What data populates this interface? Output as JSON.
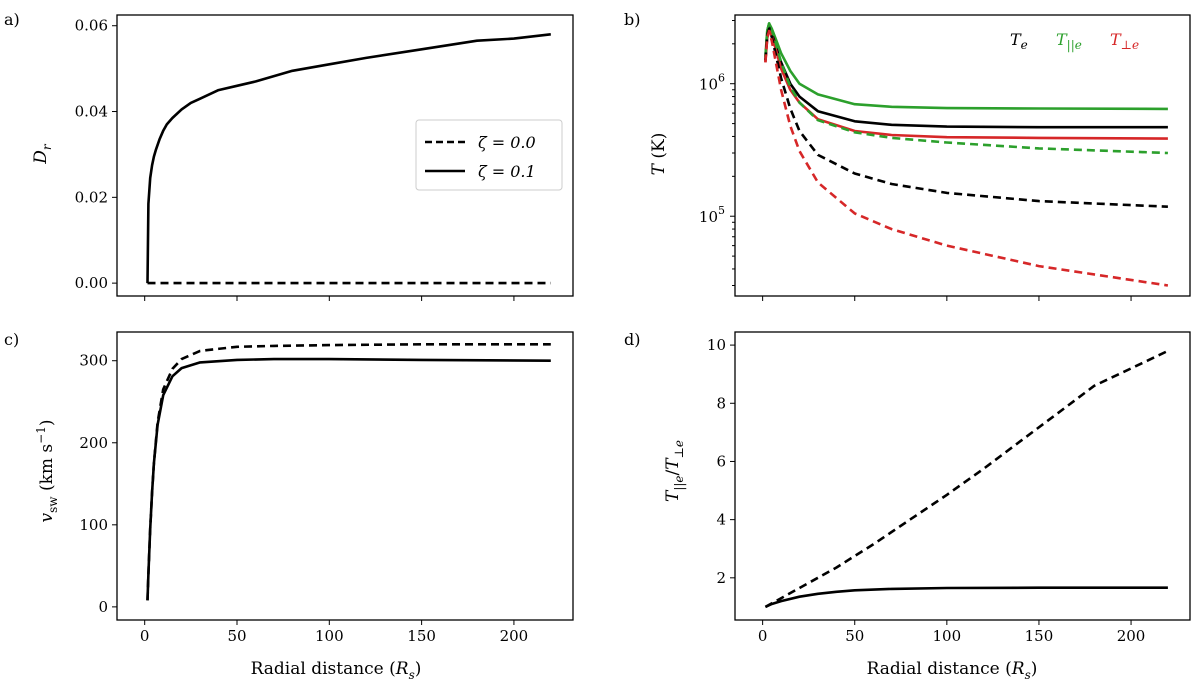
{
  "chart_data": [
    {
      "type": "line",
      "panel_label": "a)",
      "ylabel": "D_r",
      "xlabel": "",
      "xlim": [
        -15,
        232
      ],
      "ylim": [
        -0.003,
        0.0625
      ],
      "yscale": "linear",
      "xticks": [
        0,
        50,
        100,
        150,
        200
      ],
      "xticklabels": [],
      "yticks": [
        0.0,
        0.02,
        0.04,
        0.06
      ],
      "yticklabels": [
        "0.00",
        "0.02",
        "0.04",
        "0.06"
      ],
      "legend": {
        "position": "right",
        "entries": [
          {
            "label": "ζ = 0.0",
            "color": "#000000",
            "dash": "dashed"
          },
          {
            "label": "ζ = 0.1",
            "color": "#000000",
            "dash": "solid"
          }
        ]
      },
      "series": [
        {
          "name": "ζ = 0.0",
          "color": "#000000",
          "dash": "dashed",
          "x": [
            1.5,
            220
          ],
          "y": [
            0,
            0
          ]
        },
        {
          "name": "ζ = 0.1",
          "color": "#000000",
          "dash": "solid",
          "x": [
            1.5,
            2,
            3,
            4,
            5,
            6,
            8,
            10,
            12,
            15,
            20,
            25,
            30,
            40,
            50,
            60,
            80,
            100,
            120,
            150,
            180,
            200,
            220
          ],
          "y": [
            0,
            0.0185,
            0.0245,
            0.0275,
            0.0295,
            0.031,
            0.0335,
            0.0355,
            0.037,
            0.0385,
            0.0405,
            0.042,
            0.043,
            0.045,
            0.046,
            0.047,
            0.0495,
            0.051,
            0.0525,
            0.0545,
            0.0565,
            0.057,
            0.058
          ]
        }
      ]
    },
    {
      "type": "line",
      "panel_label": "b)",
      "ylabel": "T (K)",
      "xlabel": "",
      "xlim": [
        -15,
        232
      ],
      "ylim": [
        25000,
        3300000
      ],
      "yscale": "log",
      "xticks": [
        0,
        50,
        100,
        150,
        200
      ],
      "xticklabels": [],
      "yticks": [
        100000,
        1000000
      ],
      "yticklabels_base": [
        "10",
        "10"
      ],
      "yticklabels_exp": [
        "5",
        "6"
      ],
      "legend": {
        "position": "top-right",
        "entries": [
          {
            "label": "T",
            "sub": "e",
            "color": "#000000"
          },
          {
            "label": "T",
            "sub": "||e",
            "color": "#2ca02c"
          },
          {
            "label": "T",
            "sub": "⊥e",
            "color": "#d62728"
          }
        ]
      },
      "series": [
        {
          "name": "T_||e ζ=0.1",
          "color": "#2ca02c",
          "dash": "solid",
          "x": [
            1.5,
            2.5,
            3.5,
            5,
            7,
            10,
            15,
            20,
            30,
            50,
            70,
            100,
            150,
            220
          ],
          "y": [
            1600000,
            2500000,
            2850000,
            2600000,
            2200000,
            1700000,
            1250000,
            1000000,
            830000,
            700000,
            670000,
            655000,
            650000,
            645000
          ]
        },
        {
          "name": "T_e ζ=0.1",
          "color": "#000000",
          "dash": "solid",
          "x": [
            1.5,
            2.5,
            3.5,
            5,
            7,
            10,
            15,
            20,
            30,
            50,
            70,
            100,
            150,
            220
          ],
          "y": [
            1500000,
            2300000,
            2650000,
            2400000,
            1950000,
            1450000,
            1000000,
            800000,
            620000,
            520000,
            490000,
            475000,
            470000,
            470000
          ]
        },
        {
          "name": "T_⊥e ζ=0.1",
          "color": "#d62728",
          "dash": "solid",
          "x": [
            1.5,
            2.5,
            3.5,
            5,
            7,
            10,
            15,
            20,
            30,
            50,
            70,
            100,
            150,
            220
          ],
          "y": [
            1450000,
            2200000,
            2550000,
            2300000,
            1850000,
            1300000,
            900000,
            720000,
            540000,
            440000,
            410000,
            395000,
            390000,
            385000
          ]
        },
        {
          "name": "T_||e ζ=0.0",
          "color": "#2ca02c",
          "dash": "dashed",
          "x": [
            1.5,
            2.5,
            3.5,
            5,
            7,
            10,
            15,
            20,
            30,
            50,
            70,
            100,
            150,
            220
          ],
          "y": [
            1600000,
            2500000,
            2850000,
            2550000,
            2050000,
            1450000,
            950000,
            720000,
            530000,
            430000,
            390000,
            360000,
            325000,
            300000
          ]
        },
        {
          "name": "T_e ζ=0.0",
          "color": "#000000",
          "dash": "dashed",
          "x": [
            1.5,
            2.5,
            3.5,
            5,
            7,
            10,
            15,
            20,
            30,
            50,
            70,
            100,
            150,
            220
          ],
          "y": [
            1500000,
            2300000,
            2600000,
            2250000,
            1700000,
            1100000,
            650000,
            440000,
            290000,
            210000,
            175000,
            150000,
            130000,
            118000
          ]
        },
        {
          "name": "T_⊥e ζ=0.0",
          "color": "#d62728",
          "dash": "dashed",
          "x": [
            1.5,
            2.5,
            3.5,
            5,
            7,
            10,
            15,
            20,
            30,
            50,
            70,
            100,
            150,
            220
          ],
          "y": [
            1450000,
            2200000,
            2500000,
            2100000,
            1500000,
            900000,
            480000,
            310000,
            180000,
            105000,
            80000,
            60000,
            42000,
            30000
          ]
        }
      ]
    },
    {
      "type": "line",
      "panel_label": "c)",
      "ylabel": "v_sw (km s^-1)",
      "xlabel": "Radial distance (R_s)",
      "xlim": [
        -15,
        232
      ],
      "ylim": [
        -16,
        335
      ],
      "yscale": "linear",
      "xticks": [
        0,
        50,
        100,
        150,
        200
      ],
      "xticklabels": [
        "0",
        "50",
        "100",
        "150",
        "200"
      ],
      "yticks": [
        0,
        100,
        200,
        300
      ],
      "yticklabels": [
        "0",
        "100",
        "200",
        "300"
      ],
      "series": [
        {
          "name": "ζ = 0.0",
          "color": "#000000",
          "dash": "dashed",
          "x": [
            1.5,
            2,
            3,
            4,
            5,
            7,
            10,
            15,
            20,
            30,
            50,
            70,
            100,
            150,
            220
          ],
          "y": [
            8,
            40,
            95,
            140,
            175,
            225,
            265,
            290,
            302,
            312,
            317,
            318,
            319,
            320,
            320
          ]
        },
        {
          "name": "ζ = 0.1",
          "color": "#000000",
          "dash": "solid",
          "x": [
            1.5,
            2,
            3,
            4,
            5,
            7,
            10,
            15,
            20,
            30,
            50,
            70,
            100,
            150,
            220
          ],
          "y": [
            8,
            40,
            95,
            140,
            175,
            222,
            258,
            281,
            291,
            298,
            301,
            302,
            302,
            301,
            300
          ]
        }
      ]
    },
    {
      "type": "line",
      "panel_label": "d)",
      "ylabel": "T_||e/T_⊥e",
      "xlabel": "Radial distance (R_s)",
      "xlim": [
        -15,
        232
      ],
      "ylim": [
        0.55,
        10.45
      ],
      "yscale": "linear",
      "xticks": [
        0,
        50,
        100,
        150,
        200
      ],
      "xticklabels": [
        "0",
        "50",
        "100",
        "150",
        "200"
      ],
      "yticks": [
        2,
        4,
        6,
        8,
        10
      ],
      "yticklabels": [
        "2",
        "4",
        "6",
        "8",
        "10"
      ],
      "series": [
        {
          "name": "ζ = 0.0",
          "color": "#000000",
          "dash": "dashed",
          "x": [
            1.5,
            10,
            20,
            30,
            40,
            50,
            60,
            80,
            100,
            120,
            140,
            160,
            180,
            200,
            220
          ],
          "y": [
            1.0,
            1.3,
            1.65,
            2.0,
            2.35,
            2.75,
            3.15,
            4.0,
            4.85,
            5.75,
            6.7,
            7.65,
            8.6,
            9.2,
            9.8
          ]
        },
        {
          "name": "ζ = 0.1",
          "color": "#000000",
          "dash": "solid",
          "x": [
            1.5,
            5,
            10,
            20,
            30,
            40,
            50,
            70,
            100,
            150,
            220
          ],
          "y": [
            1.0,
            1.1,
            1.2,
            1.35,
            1.45,
            1.52,
            1.57,
            1.62,
            1.65,
            1.66,
            1.66
          ]
        }
      ]
    }
  ]
}
